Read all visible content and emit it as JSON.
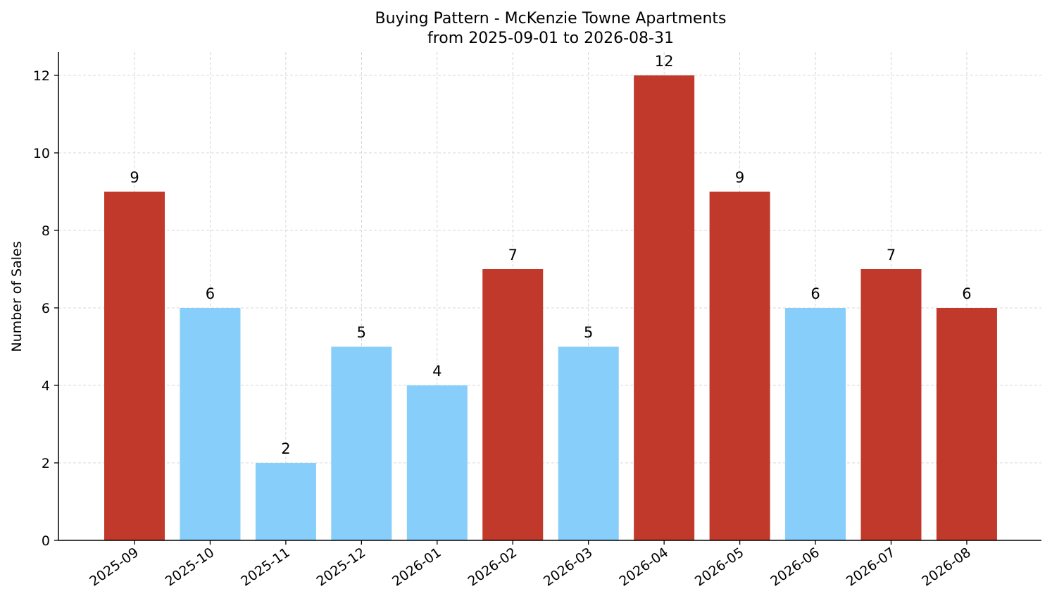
{
  "chart_data": {
    "type": "bar",
    "title_lines": [
      "Buying Pattern - McKenzie Towne Apartments",
      "from 2025-09-01 to 2026-08-31"
    ],
    "xlabel": "",
    "ylabel": "Number of Sales",
    "categories": [
      "2025-09",
      "2025-10",
      "2025-11",
      "2025-12",
      "2026-01",
      "2026-02",
      "2026-03",
      "2026-04",
      "2026-05",
      "2026-06",
      "2026-07",
      "2026-08"
    ],
    "values": [
      9,
      6,
      2,
      5,
      4,
      7,
      5,
      12,
      9,
      6,
      7,
      6
    ],
    "bar_colors": [
      "#c0392b",
      "#87cefa",
      "#87cefa",
      "#87cefa",
      "#87cefa",
      "#c0392b",
      "#87cefa",
      "#c0392b",
      "#c0392b",
      "#87cefa",
      "#c0392b",
      "#c0392b"
    ],
    "ylim": [
      0,
      12.6
    ],
    "yticks": [
      0,
      2,
      4,
      6,
      8,
      10,
      12
    ],
    "grid": true,
    "legend": "none"
  }
}
